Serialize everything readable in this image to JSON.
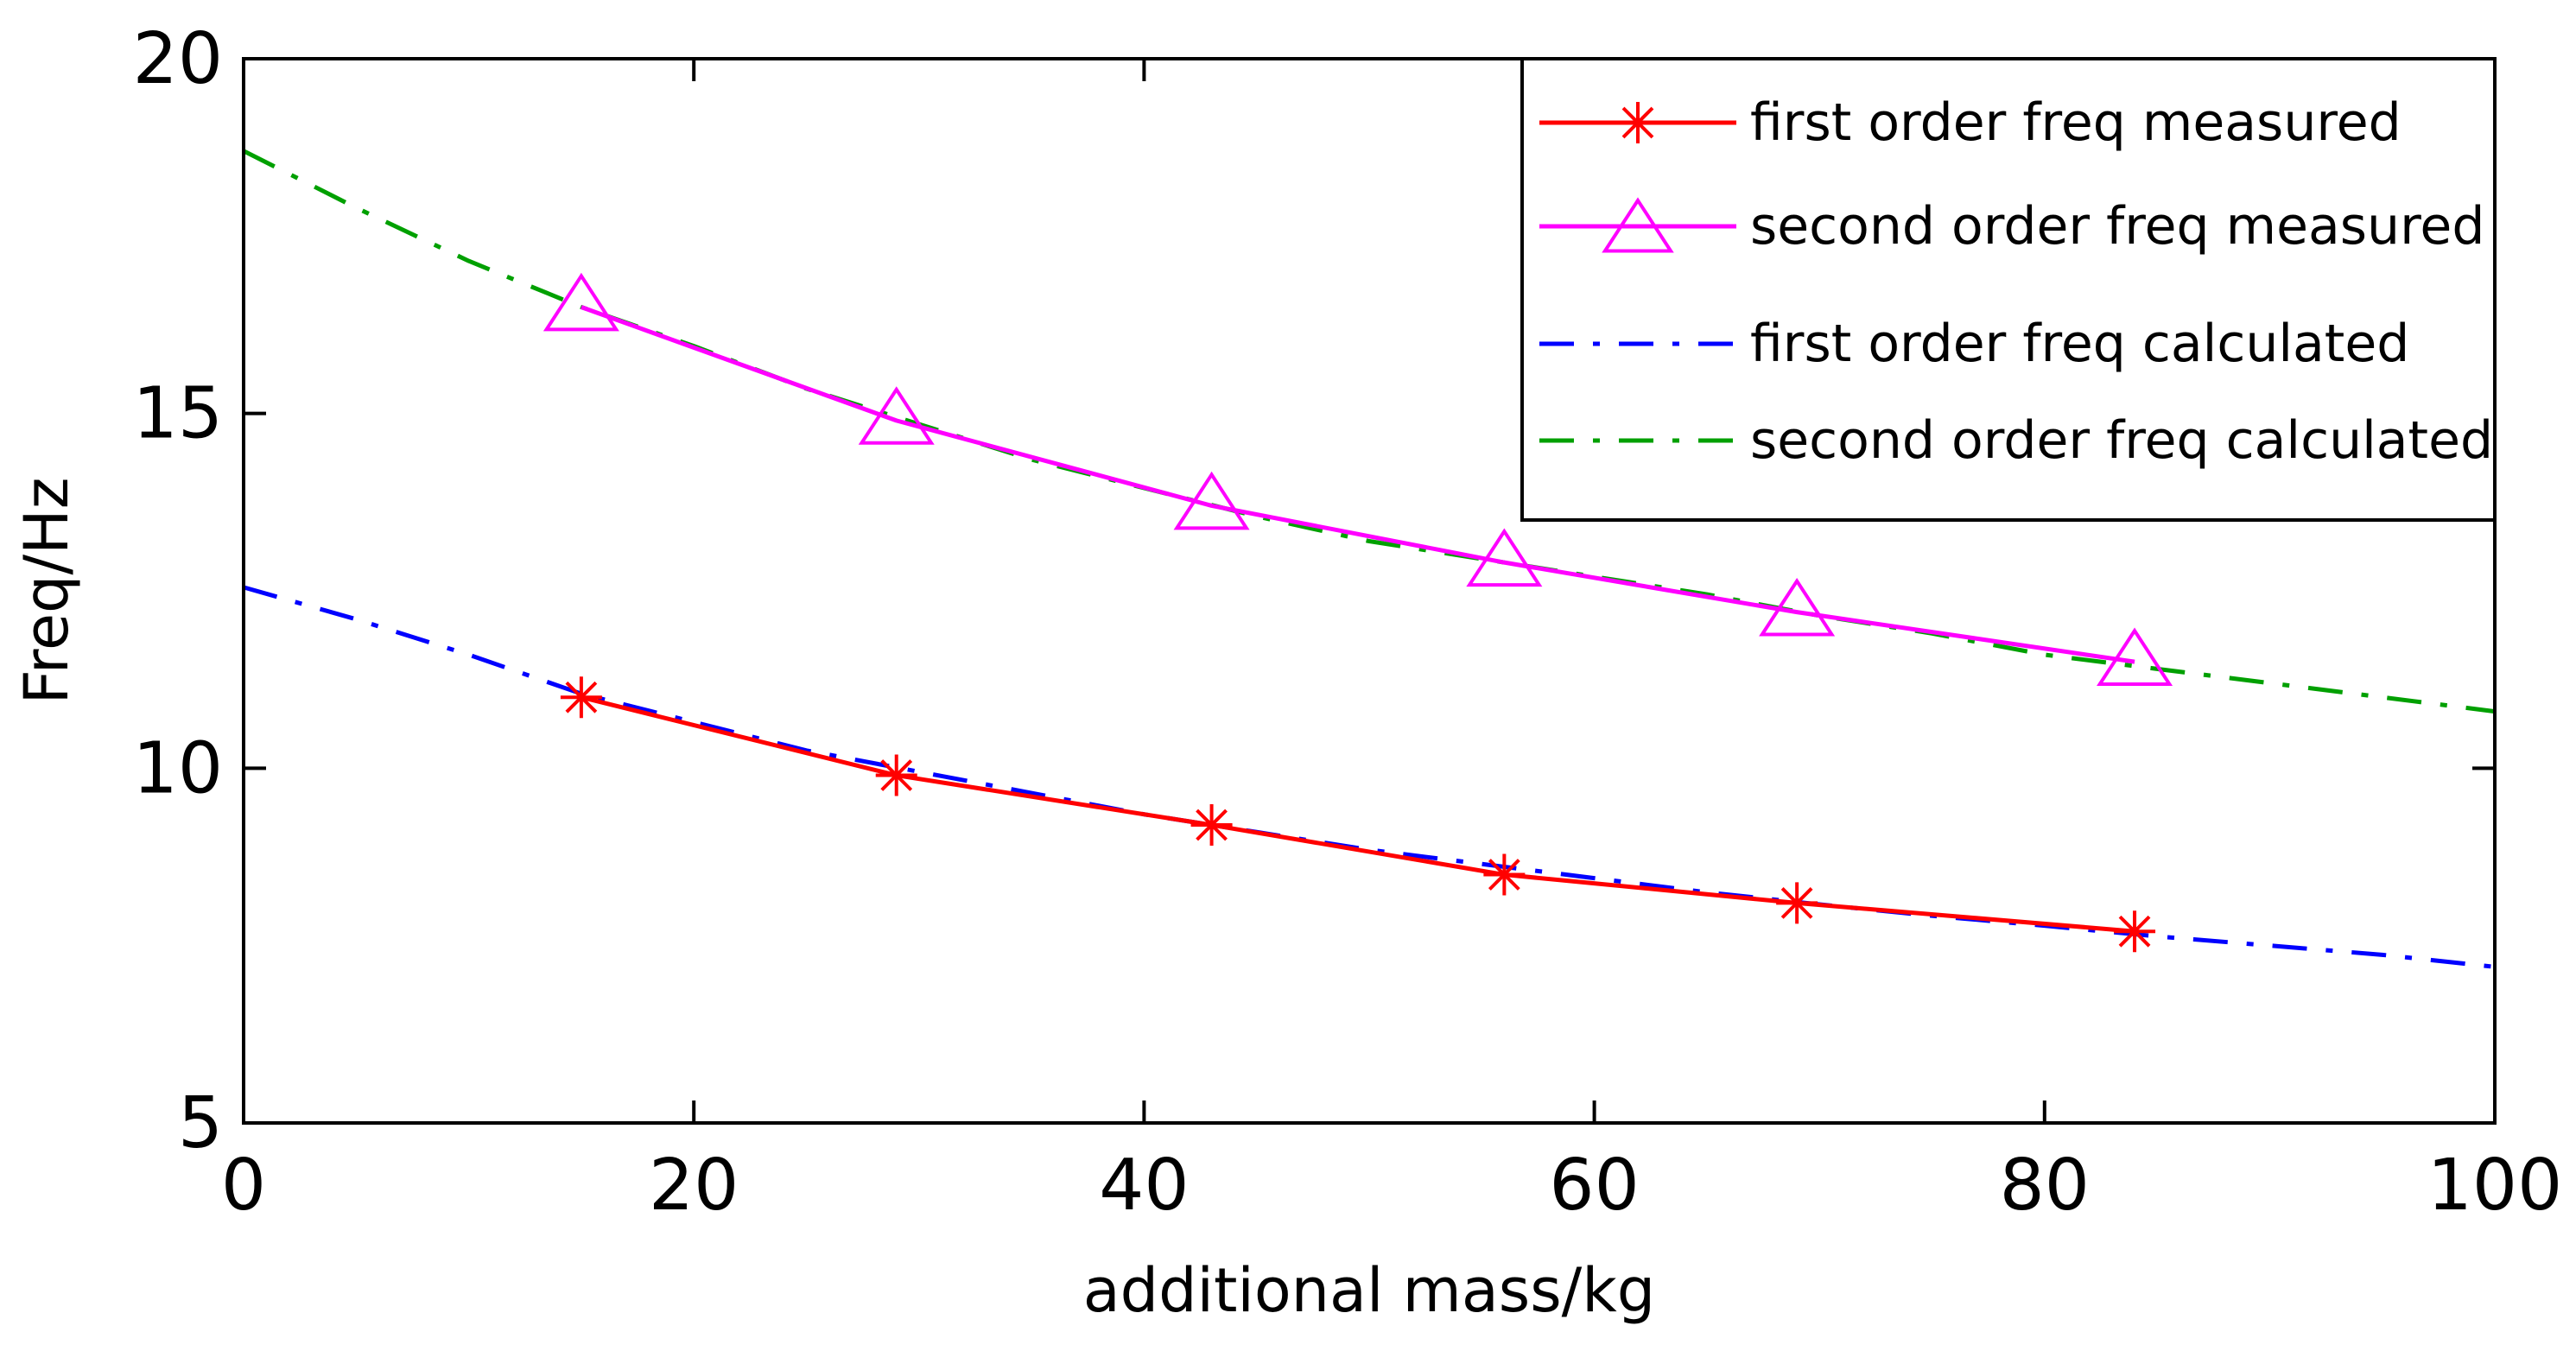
{
  "chart_data": {
    "type": "line",
    "title": "",
    "xlabel": "additional mass/kg",
    "ylabel": "Freq/Hz",
    "xlim": [
      0,
      100
    ],
    "ylim": [
      5,
      20
    ],
    "xticks": [
      0,
      20,
      40,
      60,
      80,
      100
    ],
    "yticks": [
      5,
      10,
      15,
      20
    ],
    "xtick_labels": [
      "0",
      "20",
      "40",
      "60",
      "80",
      "100"
    ],
    "ytick_labels": [
      "5",
      "10",
      "15",
      "20"
    ],
    "grid": false,
    "legend_position": "top-right",
    "series": [
      {
        "name": "first order freq measured",
        "color": "#ff0000",
        "line_style": "solid",
        "marker": "star",
        "x": [
          15,
          29,
          43,
          56,
          69,
          84
        ],
        "y": [
          11.0,
          9.9,
          9.2,
          8.5,
          8.1,
          7.7
        ]
      },
      {
        "name": "second order freq measured",
        "color": "#ff00ff",
        "line_style": "solid",
        "marker": "triangle",
        "x": [
          15,
          29,
          43,
          56,
          69,
          84
        ],
        "y": [
          16.5,
          14.9,
          13.7,
          12.9,
          12.2,
          11.5
        ]
      },
      {
        "name": "first order freq calculated",
        "color": "#0000ff",
        "line_style": "dashdot",
        "marker": "none",
        "x": [
          0,
          5,
          10,
          15,
          20,
          25,
          30,
          35,
          40,
          45,
          50,
          55,
          60,
          65,
          70,
          75,
          80,
          85,
          90,
          95,
          100
        ],
        "y": [
          12.55,
          12.1,
          11.6,
          11.05,
          10.65,
          10.25,
          9.95,
          9.65,
          9.35,
          9.1,
          8.85,
          8.65,
          8.45,
          8.25,
          8.08,
          7.92,
          7.78,
          7.63,
          7.5,
          7.37,
          7.2
        ]
      },
      {
        "name": "second order freq calculated",
        "color": "#00a000",
        "line_style": "dashdot",
        "marker": "none",
        "x": [
          0,
          5,
          10,
          15,
          20,
          25,
          30,
          35,
          40,
          45,
          50,
          55,
          60,
          65,
          70,
          75,
          80,
          85,
          90,
          95,
          100
        ],
        "y": [
          18.7,
          17.9,
          17.15,
          16.5,
          15.95,
          15.35,
          14.85,
          14.35,
          13.95,
          13.55,
          13.2,
          12.95,
          12.7,
          12.45,
          12.15,
          11.9,
          11.6,
          11.4,
          11.2,
          11.0,
          10.8
        ]
      }
    ]
  }
}
